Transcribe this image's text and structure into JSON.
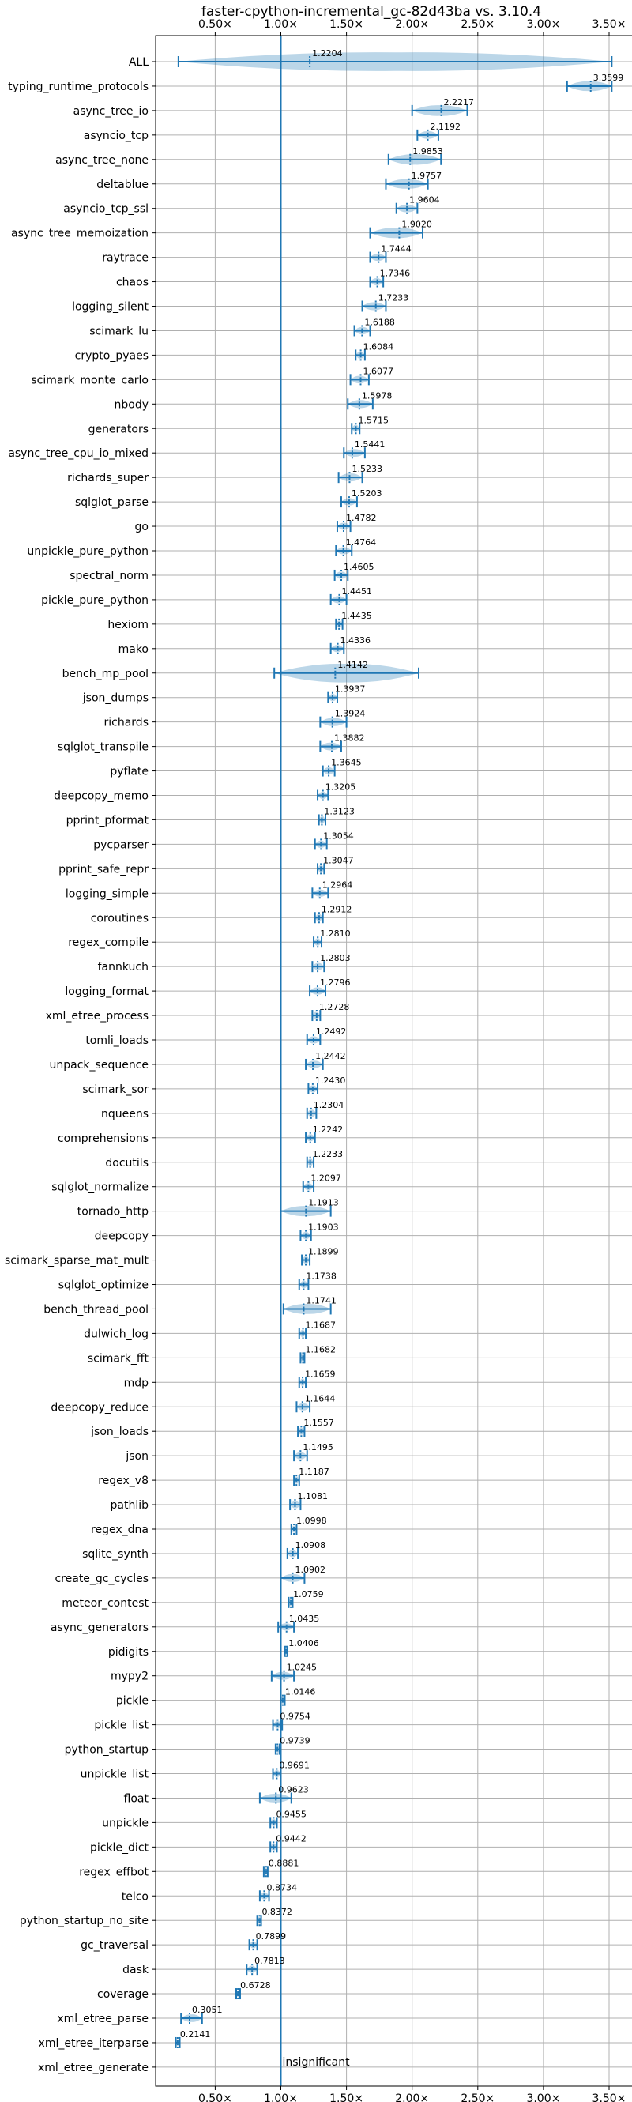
{
  "chart_data": {
    "type": "violin",
    "title": "faster-cpython-incremental_gc-82d43ba vs. 3.10.4",
    "xlim": [
      0.2,
      3.55
    ],
    "xticks": [
      {
        "value": 0.5,
        "label": "0.50×"
      },
      {
        "value": 1.0,
        "label": "1.00×"
      },
      {
        "value": 1.5,
        "label": "1.50×"
      },
      {
        "value": 2.0,
        "label": "2.00×"
      },
      {
        "value": 2.5,
        "label": "2.50×"
      },
      {
        "value": 3.0,
        "label": "3.00×"
      },
      {
        "value": 3.5,
        "label": "3.50×"
      }
    ],
    "reference_line": 1.0,
    "grid": true,
    "benchmarks": [
      {
        "name": "ALL",
        "value": 1.2204,
        "label": "1.2204",
        "min": 0.22,
        "max": 3.52
      },
      {
        "name": "typing_runtime_protocols",
        "value": 3.3599,
        "label": "3.3599",
        "min": 3.18,
        "max": 3.52
      },
      {
        "name": "async_tree_io",
        "value": 2.2217,
        "label": "2.2217",
        "min": 2.0,
        "max": 2.42
      },
      {
        "name": "asyncio_tcp",
        "value": 2.1192,
        "label": "2.1192",
        "min": 2.04,
        "max": 2.2
      },
      {
        "name": "async_tree_none",
        "value": 1.9853,
        "label": "1.9853",
        "min": 1.82,
        "max": 2.22
      },
      {
        "name": "deltablue",
        "value": 1.9757,
        "label": "1.9757",
        "min": 1.8,
        "max": 2.12
      },
      {
        "name": "asyncio_tcp_ssl",
        "value": 1.9604,
        "label": "1.9604",
        "min": 1.88,
        "max": 2.04
      },
      {
        "name": "async_tree_memoization",
        "value": 1.902,
        "label": "1.9020",
        "min": 1.68,
        "max": 2.08
      },
      {
        "name": "raytrace",
        "value": 1.7444,
        "label": "1.7444",
        "min": 1.68,
        "max": 1.8
      },
      {
        "name": "chaos",
        "value": 1.7346,
        "label": "1.7346",
        "min": 1.68,
        "max": 1.78
      },
      {
        "name": "logging_silent",
        "value": 1.7233,
        "label": "1.7233",
        "min": 1.62,
        "max": 1.8
      },
      {
        "name": "scimark_lu",
        "value": 1.6188,
        "label": "1.6188",
        "min": 1.56,
        "max": 1.68
      },
      {
        "name": "crypto_pyaes",
        "value": 1.6084,
        "label": "1.6084",
        "min": 1.57,
        "max": 1.64
      },
      {
        "name": "scimark_monte_carlo",
        "value": 1.6077,
        "label": "1.6077",
        "min": 1.53,
        "max": 1.67
      },
      {
        "name": "nbody",
        "value": 1.5978,
        "label": "1.5978",
        "min": 1.51,
        "max": 1.7
      },
      {
        "name": "generators",
        "value": 1.5715,
        "label": "1.5715",
        "min": 1.54,
        "max": 1.6
      },
      {
        "name": "async_tree_cpu_io_mixed",
        "value": 1.5441,
        "label": "1.5441",
        "min": 1.48,
        "max": 1.64
      },
      {
        "name": "richards_super",
        "value": 1.5233,
        "label": "1.5233",
        "min": 1.44,
        "max": 1.62
      },
      {
        "name": "sqlglot_parse",
        "value": 1.5203,
        "label": "1.5203",
        "min": 1.46,
        "max": 1.58
      },
      {
        "name": "go",
        "value": 1.4782,
        "label": "1.4782",
        "min": 1.43,
        "max": 1.53
      },
      {
        "name": "unpickle_pure_python",
        "value": 1.4764,
        "label": "1.4764",
        "min": 1.42,
        "max": 1.54
      },
      {
        "name": "spectral_norm",
        "value": 1.4605,
        "label": "1.4605",
        "min": 1.41,
        "max": 1.51
      },
      {
        "name": "pickle_pure_python",
        "value": 1.4451,
        "label": "1.4451",
        "min": 1.38,
        "max": 1.5
      },
      {
        "name": "hexiom",
        "value": 1.4435,
        "label": "1.4435",
        "min": 1.42,
        "max": 1.47
      },
      {
        "name": "mako",
        "value": 1.4336,
        "label": "1.4336",
        "min": 1.38,
        "max": 1.48
      },
      {
        "name": "bench_mp_pool",
        "value": 1.4142,
        "label": "1.4142",
        "min": 0.95,
        "max": 2.05
      },
      {
        "name": "json_dumps",
        "value": 1.3937,
        "label": "1.3937",
        "min": 1.36,
        "max": 1.43
      },
      {
        "name": "richards",
        "value": 1.3924,
        "label": "1.3924",
        "min": 1.3,
        "max": 1.5
      },
      {
        "name": "sqlglot_transpile",
        "value": 1.3882,
        "label": "1.3882",
        "min": 1.3,
        "max": 1.46
      },
      {
        "name": "pyflate",
        "value": 1.3645,
        "label": "1.3645",
        "min": 1.32,
        "max": 1.41
      },
      {
        "name": "deepcopy_memo",
        "value": 1.3205,
        "label": "1.3205",
        "min": 1.28,
        "max": 1.36
      },
      {
        "name": "pprint_pformat",
        "value": 1.3123,
        "label": "1.3123",
        "min": 1.29,
        "max": 1.34
      },
      {
        "name": "pycparser",
        "value": 1.3054,
        "label": "1.3054",
        "min": 1.26,
        "max": 1.35
      },
      {
        "name": "pprint_safe_repr",
        "value": 1.3047,
        "label": "1.3047",
        "min": 1.28,
        "max": 1.33
      },
      {
        "name": "logging_simple",
        "value": 1.2964,
        "label": "1.2964",
        "min": 1.24,
        "max": 1.36
      },
      {
        "name": "coroutines",
        "value": 1.2912,
        "label": "1.2912",
        "min": 1.26,
        "max": 1.32
      },
      {
        "name": "regex_compile",
        "value": 1.281,
        "label": "1.2810",
        "min": 1.25,
        "max": 1.31
      },
      {
        "name": "fannkuch",
        "value": 1.2803,
        "label": "1.2803",
        "min": 1.24,
        "max": 1.33
      },
      {
        "name": "logging_format",
        "value": 1.2796,
        "label": "1.2796",
        "min": 1.22,
        "max": 1.34
      },
      {
        "name": "xml_etree_process",
        "value": 1.2728,
        "label": "1.2728",
        "min": 1.24,
        "max": 1.3
      },
      {
        "name": "tomli_loads",
        "value": 1.2492,
        "label": "1.2492",
        "min": 1.2,
        "max": 1.3
      },
      {
        "name": "unpack_sequence",
        "value": 1.2442,
        "label": "1.2442",
        "min": 1.19,
        "max": 1.32
      },
      {
        "name": "scimark_sor",
        "value": 1.243,
        "label": "1.2430",
        "min": 1.21,
        "max": 1.28
      },
      {
        "name": "nqueens",
        "value": 1.2304,
        "label": "1.2304",
        "min": 1.2,
        "max": 1.27
      },
      {
        "name": "comprehensions",
        "value": 1.2242,
        "label": "1.2242",
        "min": 1.19,
        "max": 1.26
      },
      {
        "name": "docutils",
        "value": 1.2233,
        "label": "1.2233",
        "min": 1.2,
        "max": 1.25
      },
      {
        "name": "sqlglot_normalize",
        "value": 1.2097,
        "label": "1.2097",
        "min": 1.17,
        "max": 1.25
      },
      {
        "name": "tornado_http",
        "value": 1.1913,
        "label": "1.1913",
        "min": 1.0,
        "max": 1.38
      },
      {
        "name": "deepcopy",
        "value": 1.1903,
        "label": "1.1903",
        "min": 1.15,
        "max": 1.23
      },
      {
        "name": "scimark_sparse_mat_mult",
        "value": 1.1899,
        "label": "1.1899",
        "min": 1.16,
        "max": 1.22
      },
      {
        "name": "sqlglot_optimize",
        "value": 1.1738,
        "label": "1.1738",
        "min": 1.14,
        "max": 1.21
      },
      {
        "name": "bench_thread_pool",
        "value": 1.1741,
        "label": "1.1741",
        "min": 1.02,
        "max": 1.38
      },
      {
        "name": "dulwich_log",
        "value": 1.1687,
        "label": "1.1687",
        "min": 1.14,
        "max": 1.19
      },
      {
        "name": "scimark_fft",
        "value": 1.1682,
        "label": "1.1682",
        "min": 1.15,
        "max": 1.18
      },
      {
        "name": "mdp",
        "value": 1.1659,
        "label": "1.1659",
        "min": 1.14,
        "max": 1.19
      },
      {
        "name": "deepcopy_reduce",
        "value": 1.1644,
        "label": "1.1644",
        "min": 1.12,
        "max": 1.22
      },
      {
        "name": "json_loads",
        "value": 1.1557,
        "label": "1.1557",
        "min": 1.13,
        "max": 1.18
      },
      {
        "name": "json",
        "value": 1.1495,
        "label": "1.1495",
        "min": 1.1,
        "max": 1.2
      },
      {
        "name": "regex_v8",
        "value": 1.1187,
        "label": "1.1187",
        "min": 1.1,
        "max": 1.14
      },
      {
        "name": "pathlib",
        "value": 1.1081,
        "label": "1.1081",
        "min": 1.07,
        "max": 1.15
      },
      {
        "name": "regex_dna",
        "value": 1.0998,
        "label": "1.0998",
        "min": 1.08,
        "max": 1.12
      },
      {
        "name": "sqlite_synth",
        "value": 1.0908,
        "label": "1.0908",
        "min": 1.05,
        "max": 1.13
      },
      {
        "name": "create_gc_cycles",
        "value": 1.0902,
        "label": "1.0902",
        "min": 1.0,
        "max": 1.18
      },
      {
        "name": "meteor_contest",
        "value": 1.0759,
        "label": "1.0759",
        "min": 1.06,
        "max": 1.09
      },
      {
        "name": "async_generators",
        "value": 1.0435,
        "label": "1.0435",
        "min": 0.98,
        "max": 1.1
      },
      {
        "name": "pidigits",
        "value": 1.0406,
        "label": "1.0406",
        "min": 1.03,
        "max": 1.05
      },
      {
        "name": "mypy2",
        "value": 1.0245,
        "label": "1.0245",
        "min": 0.93,
        "max": 1.1
      },
      {
        "name": "pickle",
        "value": 1.0146,
        "label": "1.0146",
        "min": 1.0,
        "max": 1.03
      },
      {
        "name": "pickle_list",
        "value": 0.9754,
        "label": "0.9754",
        "min": 0.94,
        "max": 1.01
      },
      {
        "name": "python_startup",
        "value": 0.9739,
        "label": "0.9739",
        "min": 0.96,
        "max": 0.99
      },
      {
        "name": "unpickle_list",
        "value": 0.9691,
        "label": "0.9691",
        "min": 0.94,
        "max": 1.0
      },
      {
        "name": "float",
        "value": 0.9623,
        "label": "0.9623",
        "min": 0.84,
        "max": 1.08
      },
      {
        "name": "unpickle",
        "value": 0.9455,
        "label": "0.9455",
        "min": 0.92,
        "max": 0.97
      },
      {
        "name": "pickle_dict",
        "value": 0.9442,
        "label": "0.9442",
        "min": 0.92,
        "max": 0.97
      },
      {
        "name": "regex_effbot",
        "value": 0.8881,
        "label": "0.8881",
        "min": 0.87,
        "max": 0.9
      },
      {
        "name": "telco",
        "value": 0.8734,
        "label": "0.8734",
        "min": 0.84,
        "max": 0.91
      },
      {
        "name": "python_startup_no_site",
        "value": 0.8372,
        "label": "0.8372",
        "min": 0.82,
        "max": 0.85
      },
      {
        "name": "gc_traversal",
        "value": 0.7899,
        "label": "0.7899",
        "min": 0.76,
        "max": 0.82
      },
      {
        "name": "dask",
        "value": 0.7813,
        "label": "0.7813",
        "min": 0.74,
        "max": 0.82
      },
      {
        "name": "coverage",
        "value": 0.6728,
        "label": "0.6728",
        "min": 0.66,
        "max": 0.69
      },
      {
        "name": "xml_etree_parse",
        "value": 0.3051,
        "label": "0.3051",
        "min": 0.24,
        "max": 0.4
      },
      {
        "name": "xml_etree_iterparse",
        "value": 0.2141,
        "label": "0.2141",
        "min": 0.2,
        "max": 0.23
      },
      {
        "name": "xml_etree_generate",
        "value": null,
        "label": "insignificant",
        "min": null,
        "max": null
      }
    ]
  }
}
